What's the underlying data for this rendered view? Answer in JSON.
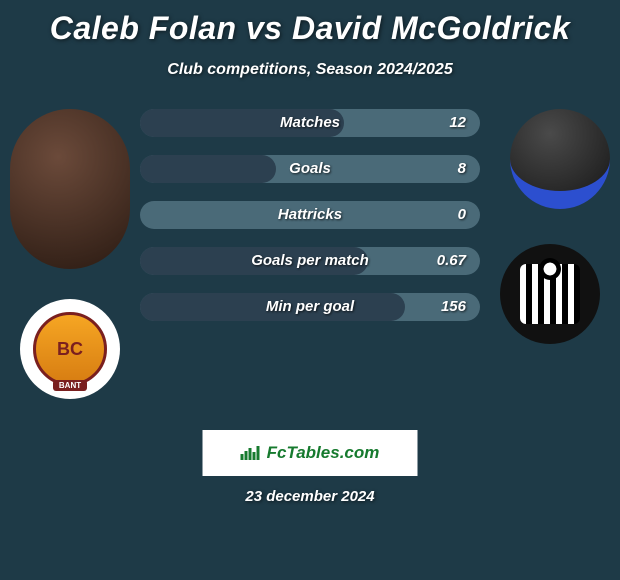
{
  "title": "Caleb Folan vs David McGoldrick",
  "subtitle": "Club competitions, Season 2024/2025",
  "brand": "FcTables.com",
  "date": "23 december 2024",
  "colors": {
    "background": "#1e3a47",
    "bar_bg": "#4a6a78",
    "bar_fill": "#2c4050",
    "text": "#ffffff",
    "brand_text": "#167a2e"
  },
  "bars": [
    {
      "label": "Matches",
      "value": "12",
      "fill_pct": 60
    },
    {
      "label": "Goals",
      "value": "8",
      "fill_pct": 40
    },
    {
      "label": "Hattricks",
      "value": "0",
      "fill_pct": 0
    },
    {
      "label": "Goals per match",
      "value": "0.67",
      "fill_pct": 67
    },
    {
      "label": "Min per goal",
      "value": "156",
      "fill_pct": 78
    }
  ],
  "avatars": {
    "left_player": {
      "name": "Caleb Folan"
    },
    "right_player": {
      "name": "David McGoldrick"
    },
    "left_badge": {
      "text": "BC",
      "ribbon": "BANT"
    },
    "right_badge": {
      "name": "Notts County"
    }
  }
}
